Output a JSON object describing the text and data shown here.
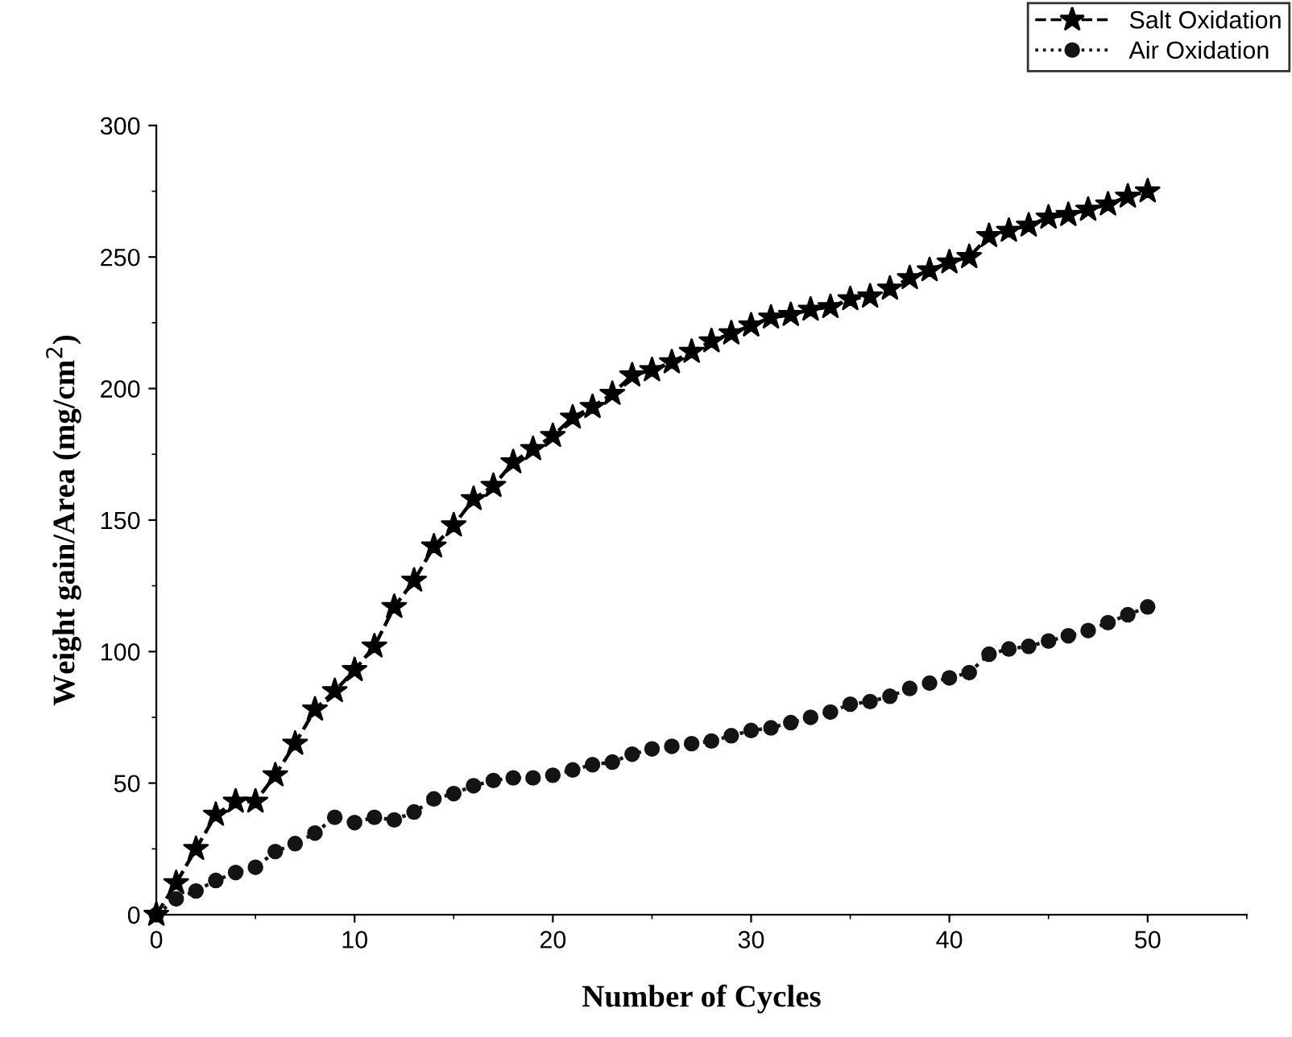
{
  "chart_data": {
    "type": "line",
    "xlabel": "Number of Cycles",
    "ylabel": "Weight gain/Area (mg/cm$^{2}$)",
    "x": [
      0,
      1,
      2,
      3,
      4,
      5,
      6,
      7,
      8,
      9,
      10,
      11,
      12,
      13,
      14,
      15,
      16,
      17,
      18,
      19,
      20,
      21,
      22,
      23,
      24,
      25,
      26,
      27,
      28,
      29,
      30,
      31,
      32,
      33,
      34,
      35,
      36,
      37,
      38,
      39,
      40,
      41,
      42,
      43,
      44,
      45,
      46,
      47,
      48,
      49,
      50
    ],
    "series": [
      {
        "name": "Salt Oxidation",
        "color": "#000000",
        "marker": "star",
        "line_style": "dashed",
        "values": [
          0,
          12,
          25,
          38,
          43,
          43,
          53,
          65,
          78,
          85,
          93,
          102,
          117,
          127,
          140,
          148,
          158,
          163,
          172,
          177,
          182,
          189,
          193,
          198,
          205,
          207,
          210,
          214,
          218,
          221,
          224,
          227,
          228,
          230,
          231,
          234,
          235,
          238,
          242,
          245,
          248,
          250,
          258,
          260,
          262,
          265,
          266,
          268,
          270,
          273,
          275
        ]
      },
      {
        "name": "Air Oxidation",
        "color": "#141414",
        "marker": "circle",
        "line_style": "dotted",
        "values": [
          0,
          6,
          9,
          13,
          16,
          18,
          24,
          27,
          31,
          37,
          35,
          37,
          36,
          39,
          44,
          46,
          49,
          51,
          52,
          52,
          53,
          55,
          57,
          58,
          61,
          63,
          64,
          65,
          66,
          68,
          70,
          71,
          73,
          75,
          77,
          80,
          81,
          83,
          86,
          88,
          90,
          92,
          99,
          101,
          102,
          104,
          106,
          108,
          111,
          114,
          117
        ]
      }
    ],
    "xlim": [
      0,
      55
    ],
    "xticks": [
      0,
      10,
      20,
      30,
      40,
      50
    ],
    "ylim": [
      0,
      300
    ],
    "yticks": [
      0,
      50,
      100,
      150,
      200,
      250,
      300
    ],
    "grid": false,
    "legend": "top right"
  }
}
